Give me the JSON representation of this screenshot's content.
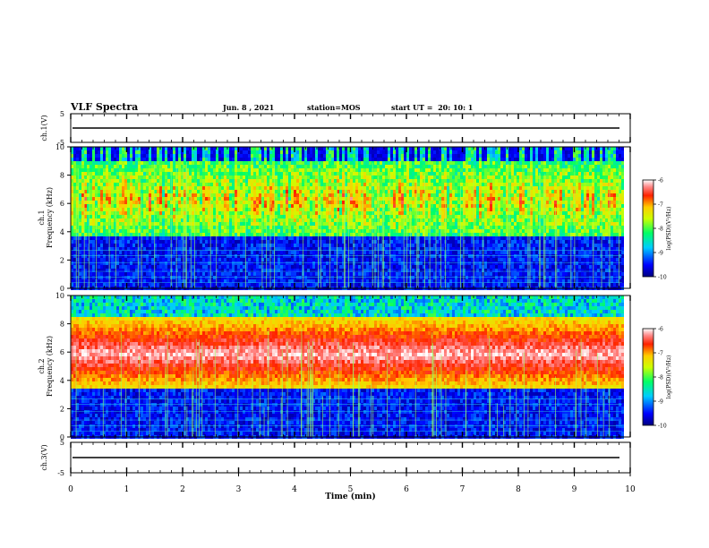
{
  "header": {
    "title": "VLF Spectra",
    "date": "Jun. 8 , 2021",
    "station": "station=MOS",
    "start": "start UT =  20: 10: 1"
  },
  "chart_data": [
    {
      "type": "line",
      "panel": "ch1-waveform",
      "ylabel": "ch.1(V)",
      "ylim": [
        -5,
        5
      ],
      "yticks": [
        "5",
        "-5"
      ],
      "xlim": [
        0,
        10
      ],
      "baseline": 0
    },
    {
      "type": "heatmap",
      "panel": "ch1-spectrogram",
      "ylabel": "ch.1\nFrequency (kHz)",
      "ylim": [
        0,
        10
      ],
      "yticks": [
        "0",
        "2",
        "4",
        "6",
        "8",
        "10"
      ],
      "xlim": [
        0,
        10
      ],
      "data_end_min": 9.85,
      "emission_band_khz": [
        3.8,
        9.0
      ],
      "colorbar": {
        "label": "log(PSD)(V²/Hz)",
        "range": [
          -10,
          -6
        ],
        "ticks": [
          "-6",
          "-7",
          "-8",
          "-9",
          "-10"
        ]
      }
    },
    {
      "type": "heatmap",
      "panel": "ch2-spectrogram",
      "ylabel": "ch.2\nFrequency (kHz)",
      "ylim": [
        0,
        10
      ],
      "yticks": [
        "0",
        "2",
        "4",
        "6",
        "8",
        "10"
      ],
      "xlim": [
        0,
        10
      ],
      "data_end_min": 9.85,
      "emission_band_khz": [
        3.5,
        8.5
      ],
      "colorbar": {
        "label": "log(PSD)(V²/Hz)",
        "range": [
          -10,
          -6
        ],
        "ticks": [
          "-6",
          "-7",
          "-8",
          "-9",
          "-10"
        ]
      }
    },
    {
      "type": "line",
      "panel": "ch3-waveform",
      "ylabel": "ch.3(V)",
      "ylim": [
        -5,
        5
      ],
      "yticks": [
        "5",
        "-5"
      ],
      "xlim": [
        0,
        10
      ],
      "baseline": 0
    }
  ],
  "xaxis": {
    "label": "Time (min)",
    "ticks": [
      "0",
      "1",
      "2",
      "3",
      "4",
      "5",
      "6",
      "7",
      "8",
      "9",
      "10"
    ]
  }
}
